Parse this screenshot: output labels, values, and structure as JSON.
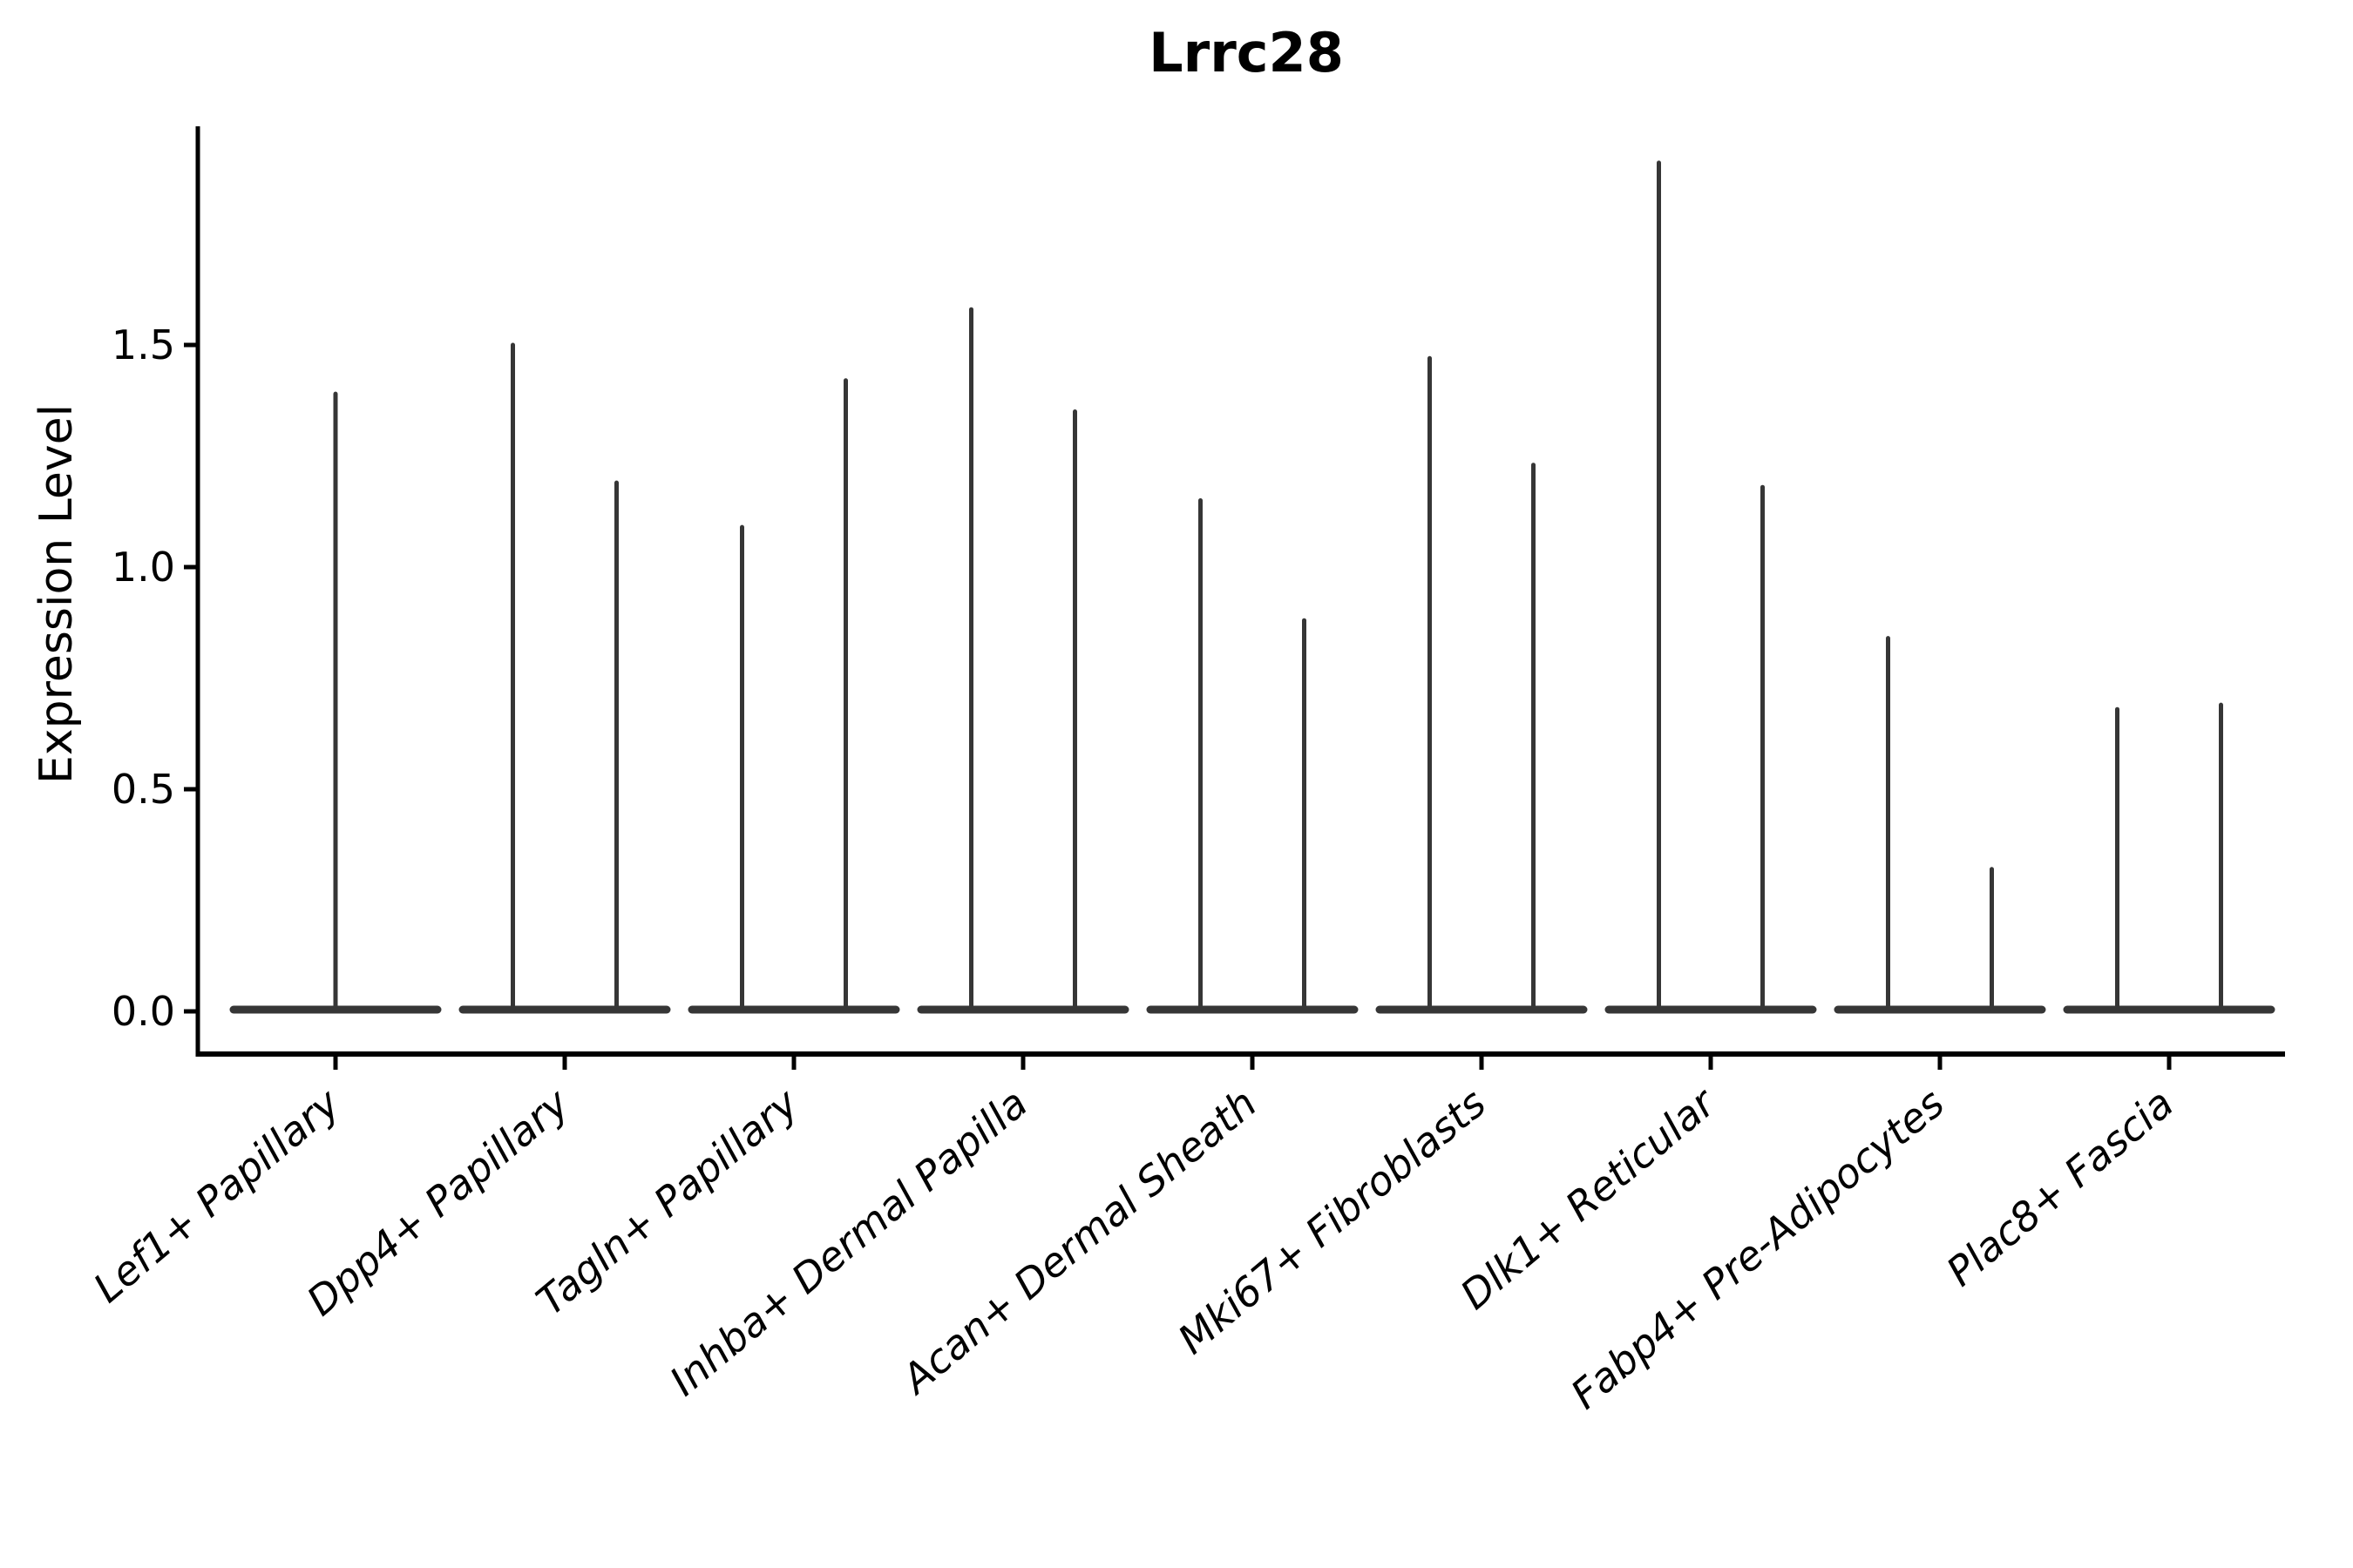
{
  "title": "Lrrc28",
  "ylabel": "Expression Level",
  "colors": {
    "violin": "#363636",
    "axis": "#000000",
    "text": "#000000",
    "background": "#ffffff"
  },
  "chart_data": {
    "type": "violin",
    "title": "Lrrc28",
    "xlabel": "",
    "ylabel": "Expression Level",
    "ylim": [
      -0.1,
      2.0
    ],
    "yticks": [
      "0.0",
      "0.5",
      "1.0",
      "1.5"
    ],
    "ytick_values": [
      0.0,
      0.5,
      1.0,
      1.5
    ],
    "grid": false,
    "legend": "none",
    "baseline_value": 0.0,
    "categories": [
      "Lef1+ Papillary",
      "Dpp4+ Papillary",
      "Tagln+ Papillary",
      "Inhba+ Dermal Papilla",
      "Acan+ Dermal Sheath",
      "Mki67+ Fibroblasts",
      "Dlk1+ Reticular",
      "Fabp4+ Pre-Adipocytes",
      "Plac8+ Fascia"
    ],
    "violins": [
      {
        "category": "Lef1+ Papillary",
        "spike_max": [
          1.39
        ]
      },
      {
        "category": "Dpp4+ Papillary",
        "spike_max": [
          1.5,
          1.19
        ]
      },
      {
        "category": "Tagln+ Papillary",
        "spike_max": [
          1.09,
          1.42
        ]
      },
      {
        "category": "Inhba+ Dermal Papilla",
        "spike_max": [
          1.58,
          1.35
        ]
      },
      {
        "category": "Acan+ Dermal Sheath",
        "spike_max": [
          1.15,
          0.88
        ]
      },
      {
        "category": "Mki67+ Fibroblasts",
        "spike_max": [
          1.47,
          1.23
        ]
      },
      {
        "category": "Dlk1+ Reticular",
        "spike_max": [
          1.91,
          1.18
        ]
      },
      {
        "category": "Fabp4+ Pre-Adipocytes",
        "spike_max": [
          0.84,
          0.32
        ]
      },
      {
        "category": "Plac8+ Fascia",
        "spike_max": [
          0.68,
          0.69
        ]
      }
    ]
  }
}
